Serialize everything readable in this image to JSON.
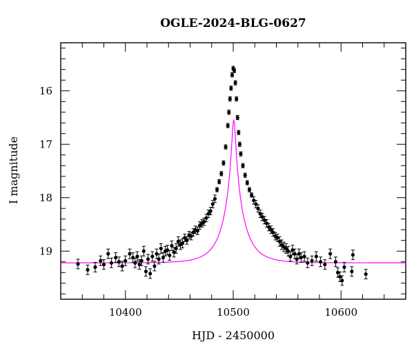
{
  "chart_data": {
    "type": "scatter",
    "title": "OGLE-2024-BLG-0627",
    "xlabel": "HJD - 2450000",
    "ylabel": "I magnitude",
    "xlim": [
      10340,
      10660
    ],
    "ylim": [
      19.9,
      15.1
    ],
    "y_inverted": true,
    "x_ticks": [
      10400,
      10500,
      10600
    ],
    "y_ticks": [
      16,
      17,
      18,
      19
    ],
    "grid": false,
    "model": {
      "name": "",
      "color": "#ff00ff",
      "baseline_mag": 19.22,
      "t0": 10500.5,
      "u0": 0.085,
      "tE": 19,
      "blend_fraction": 1.0
    },
    "colors": {
      "points": "#000000",
      "model": "#ff00ff"
    },
    "data_points": [
      [
        10356,
        19.24
      ],
      [
        10365,
        19.35
      ],
      [
        10372,
        19.3
      ],
      [
        10377,
        19.18
      ],
      [
        10380,
        19.25
      ],
      [
        10384,
        19.05
      ],
      [
        10387,
        19.22
      ],
      [
        10391,
        19.12
      ],
      [
        10394,
        19.2
      ],
      [
        10397,
        19.28
      ],
      [
        10400,
        19.18
      ],
      [
        10404,
        19.05
      ],
      [
        10407,
        19.12
      ],
      [
        10409,
        19.22
      ],
      [
        10411,
        19.1
      ],
      [
        10413,
        19.25
      ],
      [
        10415,
        19.18
      ],
      [
        10417,
        19.0
      ],
      [
        10419,
        19.38
      ],
      [
        10421,
        19.15
      ],
      [
        10423,
        19.42
      ],
      [
        10425,
        19.1
      ],
      [
        10427,
        19.28
      ],
      [
        10429,
        19.05
      ],
      [
        10431,
        19.15
      ],
      [
        10433,
        18.95
      ],
      [
        10435,
        19.12
      ],
      [
        10437,
        19.0
      ],
      [
        10439,
        18.98
      ],
      [
        10441,
        19.08
      ],
      [
        10443,
        18.9
      ],
      [
        10445,
        19.02
      ],
      [
        10447,
        18.95
      ],
      [
        10449,
        18.82
      ],
      [
        10451,
        18.88
      ],
      [
        10453,
        18.85
      ],
      [
        10455,
        18.75
      ],
      [
        10457,
        18.8
      ],
      [
        10459,
        18.7
      ],
      [
        10461,
        18.72
      ],
      [
        10463,
        18.65
      ],
      [
        10465,
        18.6
      ],
      [
        10467,
        18.62
      ],
      [
        10469,
        18.52
      ],
      [
        10471,
        18.48
      ],
      [
        10473,
        18.45
      ],
      [
        10475,
        18.38
      ],
      [
        10477,
        18.3
      ],
      [
        10479,
        18.25
      ],
      [
        10481,
        18.12
      ],
      [
        10483,
        18.02
      ],
      [
        10485,
        17.85
      ],
      [
        10487,
        17.7
      ],
      [
        10489,
        17.55
      ],
      [
        10491,
        17.35
      ],
      [
        10493,
        17.05
      ],
      [
        10495,
        16.65
      ],
      [
        10496,
        16.4
      ],
      [
        10497,
        16.15
      ],
      [
        10498,
        15.95
      ],
      [
        10499,
        15.7
      ],
      [
        10500,
        15.58
      ],
      [
        10501,
        15.62
      ],
      [
        10502,
        15.85
      ],
      [
        10503,
        16.15
      ],
      [
        10504,
        16.5
      ],
      [
        10505,
        16.78
      ],
      [
        10506,
        17.0
      ],
      [
        10507,
        17.18
      ],
      [
        10509,
        17.4
      ],
      [
        10511,
        17.58
      ],
      [
        10513,
        17.72
      ],
      [
        10515,
        17.85
      ],
      [
        10517,
        17.95
      ],
      [
        10519,
        18.05
      ],
      [
        10521,
        18.12
      ],
      [
        10523,
        18.2
      ],
      [
        10525,
        18.3
      ],
      [
        10527,
        18.36
      ],
      [
        10529,
        18.42
      ],
      [
        10531,
        18.48
      ],
      [
        10533,
        18.55
      ],
      [
        10535,
        18.6
      ],
      [
        10537,
        18.65
      ],
      [
        10539,
        18.72
      ],
      [
        10541,
        18.75
      ],
      [
        10543,
        18.82
      ],
      [
        10545,
        18.88
      ],
      [
        10547,
        18.92
      ],
      [
        10549,
        18.95
      ],
      [
        10551,
        19.0
      ],
      [
        10553,
        19.1
      ],
      [
        10555,
        18.98
      ],
      [
        10557,
        19.05
      ],
      [
        10559,
        19.15
      ],
      [
        10561,
        19.05
      ],
      [
        10563,
        19.12
      ],
      [
        10566,
        19.1
      ],
      [
        10569,
        19.22
      ],
      [
        10573,
        19.18
      ],
      [
        10577,
        19.1
      ],
      [
        10581,
        19.2
      ],
      [
        10585,
        19.25
      ],
      [
        10590,
        19.05
      ],
      [
        10595,
        19.2
      ],
      [
        10597,
        19.4
      ],
      [
        10599,
        19.48
      ],
      [
        10601,
        19.55
      ],
      [
        10603,
        19.3
      ],
      [
        10610,
        19.38
      ],
      [
        10611,
        19.07
      ],
      [
        10623,
        19.43
      ]
    ]
  }
}
